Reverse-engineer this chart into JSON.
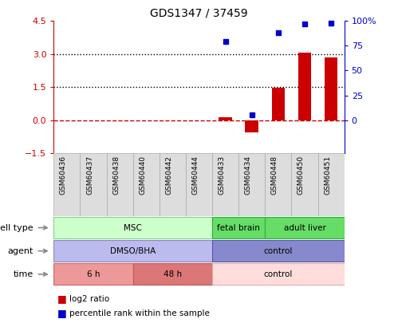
{
  "title": "GDS1347 / 37459",
  "samples": [
    "GSM60436",
    "GSM60437",
    "GSM60438",
    "GSM60440",
    "GSM60442",
    "GSM60444",
    "GSM60433",
    "GSM60434",
    "GSM60448",
    "GSM60450",
    "GSM60451"
  ],
  "log2_ratio": [
    0,
    0,
    0,
    0,
    0,
    0,
    0.13,
    -0.55,
    1.48,
    3.08,
    2.85
  ],
  "percentile_rank": [
    null,
    null,
    null,
    null,
    null,
    null,
    79,
    5,
    88,
    97,
    98
  ],
  "percentile_scale": 4.5,
  "ylim": [
    -1.5,
    4.5
  ],
  "yticks_left": [
    -1.5,
    0,
    1.5,
    3,
    4.5
  ],
  "yticks_right": [
    0,
    25,
    50,
    75,
    100
  ],
  "hlines": [
    {
      "y": 0,
      "color": "#cc0000",
      "ls": "dashed",
      "lw": 1.0
    },
    {
      "y": 1.5,
      "color": "black",
      "ls": "dotted",
      "lw": 1.0
    },
    {
      "y": 3.0,
      "color": "black",
      "ls": "dotted",
      "lw": 1.0
    }
  ],
  "bar_color": "#cc0000",
  "dot_color": "#0000cc",
  "bar_width": 0.5,
  "cell_type_groups": [
    {
      "label": "MSC",
      "start": 0,
      "end": 6,
      "color": "#ccffcc",
      "edge": "#88cc88"
    },
    {
      "label": "fetal brain",
      "start": 6,
      "end": 8,
      "color": "#66dd66",
      "edge": "#33aa33"
    },
    {
      "label": "adult liver",
      "start": 8,
      "end": 11,
      "color": "#66dd66",
      "edge": "#33aa33"
    }
  ],
  "agent_groups": [
    {
      "label": "DMSO/BHA",
      "start": 0,
      "end": 6,
      "color": "#bbbbee",
      "edge": "#8888bb"
    },
    {
      "label": "control",
      "start": 6,
      "end": 11,
      "color": "#8888cc",
      "edge": "#5555aa"
    }
  ],
  "time_groups": [
    {
      "label": "6 h",
      "start": 0,
      "end": 3,
      "color": "#ee9999",
      "edge": "#cc6666"
    },
    {
      "label": "48 h",
      "start": 3,
      "end": 6,
      "color": "#dd7777",
      "edge": "#bb5555"
    },
    {
      "label": "control",
      "start": 6,
      "end": 11,
      "color": "#ffdddd",
      "edge": "#ddaaaa"
    }
  ],
  "row_labels": [
    "cell type",
    "agent",
    "time"
  ],
  "legend": [
    {
      "color": "#cc0000",
      "label": "log2 ratio"
    },
    {
      "color": "#0000cc",
      "label": "percentile rank within the sample"
    }
  ],
  "axis_left_color": "#cc0000",
  "axis_right_color": "#0000cc",
  "sample_bg": "#dddddd",
  "sample_edge": "#aaaaaa"
}
